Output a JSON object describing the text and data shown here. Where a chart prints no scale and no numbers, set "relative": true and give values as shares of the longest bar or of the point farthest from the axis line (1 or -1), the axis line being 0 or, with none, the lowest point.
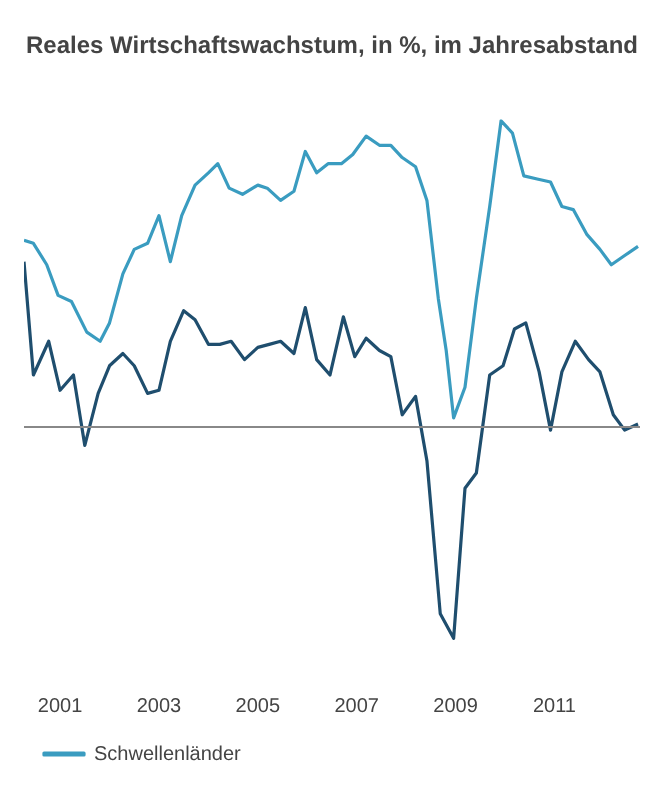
{
  "chart_data": {
    "type": "line",
    "title": "Reales Wirtschaftswachstum, in %, im Jahresabstand",
    "relative": true,
    "legend": "bottom left",
    "marker": "none",
    "line_style": "solid",
    "xlim": [
      2000.27,
      2012.73
    ],
    "xticks": [
      2001,
      2003,
      2005,
      2007,
      2009,
      2011
    ],
    "series": [
      {
        "color": "#1f4e6e",
        "x": [
          2000.27,
          2000.46,
          2000.77,
          2001.0,
          2001.27,
          2001.5,
          2001.77,
          2002.0,
          2002.27,
          2002.5,
          2002.77,
          2003.0,
          2003.23,
          2003.5,
          2003.73,
          2004.0,
          2004.23,
          2004.46,
          2004.73,
          2005.0,
          2005.23,
          2005.46,
          2005.73,
          2005.96,
          2006.19,
          2006.46,
          2006.73,
          2006.96,
          2007.19,
          2007.46,
          2007.69,
          2007.92,
          2008.19,
          2008.42,
          2008.69,
          2008.96,
          2009.19,
          2009.42,
          2009.69,
          2009.96,
          2010.19,
          2010.42,
          2010.69,
          2010.92,
          2011.15,
          2011.42,
          2011.69,
          2011.92,
          2012.19,
          2012.42,
          2012.69
        ],
        "values": [
          0.54,
          0.17,
          0.28,
          0.12,
          0.17,
          -0.06,
          0.11,
          0.2,
          0.24,
          0.2,
          0.11,
          0.12,
          0.28,
          0.38,
          0.35,
          0.27,
          0.27,
          0.28,
          0.22,
          0.26,
          0.27,
          0.28,
          0.24,
          0.39,
          0.22,
          0.17,
          0.36,
          0.23,
          0.29,
          0.25,
          0.23,
          0.04,
          0.1,
          -0.11,
          -0.61,
          -0.69,
          -0.2,
          -0.15,
          0.17,
          0.2,
          0.32,
          0.34,
          0.18,
          -0.01,
          0.18,
          0.28,
          0.22,
          0.18,
          0.04,
          -0.01,
          0.01
        ]
      },
      {
        "name": "Schwellenländer",
        "color": "#3a9cc0",
        "x": [
          2000.27,
          2000.46,
          2000.73,
          2000.96,
          2001.23,
          2001.54,
          2001.81,
          2002.0,
          2002.27,
          2002.5,
          2002.77,
          2003.0,
          2003.23,
          2003.46,
          2003.73,
          2004.0,
          2004.19,
          2004.42,
          2004.69,
          2005.0,
          2005.19,
          2005.46,
          2005.73,
          2005.96,
          2006.19,
          2006.42,
          2006.69,
          2006.92,
          2007.19,
          2007.46,
          2007.69,
          2007.92,
          2008.19,
          2008.42,
          2008.65,
          2008.81,
          2008.96,
          2009.19,
          2009.42,
          2009.69,
          2009.92,
          2010.15,
          2010.38,
          2010.65,
          2010.92,
          2011.15,
          2011.38,
          2011.65,
          2011.92,
          2012.15,
          2012.42,
          2012.69
        ],
        "values": [
          0.61,
          0.6,
          0.53,
          0.43,
          0.41,
          0.31,
          0.28,
          0.34,
          0.5,
          0.58,
          0.6,
          0.69,
          0.54,
          0.69,
          0.79,
          0.83,
          0.86,
          0.78,
          0.76,
          0.79,
          0.78,
          0.74,
          0.77,
          0.9,
          0.83,
          0.86,
          0.86,
          0.89,
          0.95,
          0.92,
          0.92,
          0.88,
          0.85,
          0.74,
          0.42,
          0.25,
          0.03,
          0.13,
          0.42,
          0.72,
          1,
          0.96,
          0.82,
          0.81,
          0.8,
          0.72,
          0.71,
          0.63,
          0.58,
          0.53,
          0.56,
          0.59
        ]
      }
    ]
  }
}
